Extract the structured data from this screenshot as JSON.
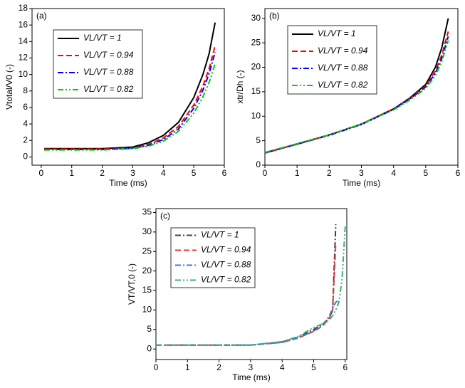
{
  "chart_data": [
    {
      "type": "line",
      "label": "(a)",
      "xlabel": "Time (ms)",
      "ylabel": "Vtotal/V0 (-)",
      "xlim": [
        -0.3,
        6
      ],
      "ylim": [
        -1,
        18
      ],
      "xticks": [
        0,
        1,
        2,
        3,
        4,
        5,
        6
      ],
      "yticks": [
        0,
        2,
        4,
        6,
        8,
        10,
        12,
        14,
        16,
        18
      ],
      "legend": "upper left",
      "x": [
        0.1,
        1,
        2,
        3,
        3.5,
        4,
        4.5,
        5,
        5.3,
        5.5,
        5.7
      ],
      "series": [
        {
          "name": "VL/VT = 1",
          "color": "#000000",
          "dash": "solid",
          "values": [
            1,
            1,
            1,
            1.2,
            1.7,
            2.6,
            4.2,
            7.2,
            10,
            12.5,
            16.3
          ]
        },
        {
          "name": "VL/VT = 0.94",
          "color": "#ff0000",
          "dash": "dashed",
          "values": [
            0.95,
            0.95,
            0.95,
            1.1,
            1.5,
            2.3,
            3.7,
            6.3,
            8.6,
            10.7,
            13.5
          ]
        },
        {
          "name": "VL/VT = 0.88",
          "color": "#0000ff",
          "dash": "dashdot",
          "values": [
            0.9,
            0.9,
            0.9,
            1.05,
            1.4,
            2.1,
            3.4,
            5.9,
            8.1,
            10.1,
            12.7
          ]
        },
        {
          "name": "VL/VT = 0.82",
          "color": "#00cc00",
          "dash": "dashdotdot",
          "values": [
            0.85,
            0.85,
            0.85,
            1,
            1.3,
            1.9,
            3.1,
            5.3,
            7.3,
            9,
            11.3
          ]
        }
      ]
    },
    {
      "type": "line",
      "label": "(b)",
      "xlabel": "Time (ms)",
      "ylabel": "xtr/Dh (-)",
      "xlim": [
        0,
        6
      ],
      "ylim": [
        0,
        32
      ],
      "xticks": [
        0,
        1,
        2,
        3,
        4,
        5,
        6
      ],
      "yticks": [
        0,
        5,
        10,
        15,
        20,
        25,
        30
      ],
      "legend": "upper left",
      "x": [
        0,
        1,
        2,
        3,
        4,
        4.5,
        5,
        5.3,
        5.5,
        5.7
      ],
      "series": [
        {
          "name": "VL/VT = 1",
          "color": "#000000",
          "dash": "solid",
          "values": [
            2.5,
            4.3,
            6.2,
            8.4,
            11.5,
            13.7,
            16.5,
            20,
            24,
            30
          ]
        },
        {
          "name": "VL/VT = 0.94",
          "color": "#ff0000",
          "dash": "dashed",
          "values": [
            2.5,
            4.3,
            6.2,
            8.4,
            11.5,
            13.6,
            16.2,
            19.2,
            22.5,
            27.3
          ]
        },
        {
          "name": "VL/VT = 0.88",
          "color": "#0000ff",
          "dash": "dashdot",
          "values": [
            2.5,
            4.3,
            6.1,
            8.3,
            11.4,
            13.5,
            16,
            18.8,
            21.8,
            26.3
          ]
        },
        {
          "name": "VL/VT = 0.82",
          "color": "#00cc00",
          "dash": "dashdotdot",
          "values": [
            2.6,
            4.4,
            6.2,
            8.4,
            11.3,
            13.3,
            15.7,
            18.3,
            21.2,
            25.5
          ]
        }
      ]
    },
    {
      "type": "line",
      "label": "(c)",
      "xlabel": "Time (ms)",
      "ylabel": "VT/VT,0 (-)",
      "xlim": [
        0,
        6.05
      ],
      "ylim": [
        -2.7,
        36
      ],
      "xticks": [
        0,
        1,
        2,
        3,
        4,
        5,
        6
      ],
      "yticks": [
        0,
        5,
        10,
        15,
        20,
        25,
        30,
        35
      ],
      "legend": "upper left",
      "x": [
        0,
        1,
        2,
        3,
        4,
        4.5,
        5,
        5.3,
        5.5,
        5.6,
        5.7,
        5.8,
        5.9,
        6
      ],
      "series": [
        {
          "name": "VL/VT = 1",
          "color": "#404040",
          "dash": "dashdot",
          "values": [
            1,
            1,
            1,
            1,
            1.8,
            3,
            5,
            6.5,
            8,
            10,
            32,
            null,
            null,
            null
          ]
        },
        {
          "name": "VL/VT = 0.94",
          "color": "#e8393a",
          "dash": "dashed",
          "values": [
            1,
            1,
            1,
            1,
            1.7,
            2.8,
            4.5,
            6,
            8,
            10,
            27,
            null,
            null,
            null
          ]
        },
        {
          "name": "VL/VT = 0.88",
          "color": "#3a7bd5",
          "dash": "dashdot",
          "values": [
            1,
            1,
            1,
            1,
            1.7,
            2.8,
            4.6,
            6.2,
            8.5,
            10.5,
            12,
            12.5,
            null,
            null
          ]
        },
        {
          "name": "VL/VT = 0.82",
          "color": "#3cb371",
          "dash": "dashdotdot",
          "values": [
            1,
            1,
            1,
            1,
            1.9,
            3.2,
            5.5,
            6.5,
            7.5,
            8.5,
            10,
            12,
            18,
            31.5
          ]
        }
      ]
    }
  ]
}
